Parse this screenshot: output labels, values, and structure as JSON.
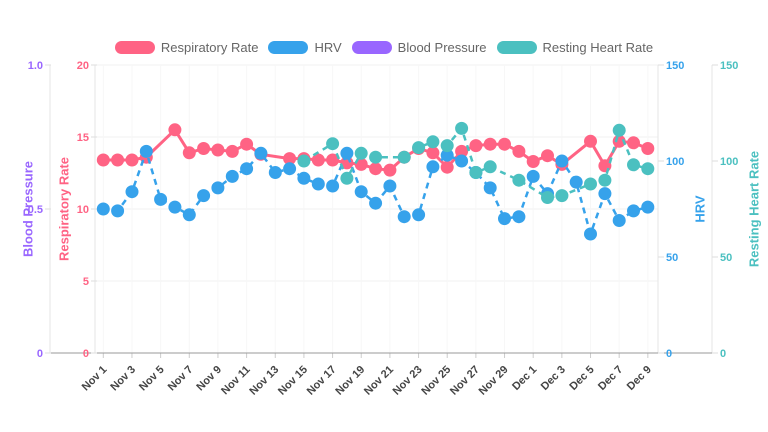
{
  "legend": [
    {
      "label": "Respiratory Rate",
      "color": "#ff6384",
      "style": "solid"
    },
    {
      "label": "HRV",
      "color": "#36a2eb",
      "style": "dashed"
    },
    {
      "label": "Blood Pressure",
      "color": "#9966ff",
      "style": "dashed"
    },
    {
      "label": "Resting Heart Rate",
      "color": "#4bc0c0",
      "style": "dashed"
    }
  ],
  "axes": {
    "blood_pressure": {
      "title": "Blood Pressure",
      "color": "#9966ff",
      "min": 0,
      "max": 1,
      "ticks": [
        "1.0",
        "0.5",
        "0"
      ]
    },
    "respiratory_rate": {
      "title": "Respiratory Rate",
      "color": "#ff6384",
      "min": 0,
      "max": 20,
      "ticks": [
        "20",
        "15",
        "10",
        "5",
        "0"
      ]
    },
    "hrv": {
      "title": "HRV",
      "color": "#36a2eb",
      "min": 0,
      "max": 150,
      "ticks": [
        "150",
        "100",
        "50",
        "0"
      ]
    },
    "resting_heart_rate": {
      "title": "Resting Heart Rate",
      "color": "#4bc0c0",
      "min": 0,
      "max": 150,
      "ticks": [
        "150",
        "100",
        "50",
        "0"
      ]
    }
  },
  "chart_data": {
    "type": "line",
    "legend_position": "top",
    "grid": "horizontal-light",
    "categories": [
      "Nov 1",
      "Nov 2",
      "Nov 3",
      "Nov 4",
      "Nov 5",
      "Nov 6",
      "Nov 7",
      "Nov 8",
      "Nov 9",
      "Nov 10",
      "Nov 11",
      "Nov 12",
      "Nov 13",
      "Nov 14",
      "Nov 15",
      "Nov 16",
      "Nov 17",
      "Nov 18",
      "Nov 19",
      "Nov 20",
      "Nov 21",
      "Nov 22",
      "Nov 23",
      "Nov 24",
      "Nov 25",
      "Nov 26",
      "Nov 27",
      "Nov 28",
      "Nov 29",
      "Nov 30",
      "Dec 1",
      "Dec 2",
      "Dec 3",
      "Dec 4",
      "Dec 5",
      "Dec 6",
      "Dec 7",
      "Dec 8",
      "Dec 9"
    ],
    "x_tick_labels": [
      "Nov 1",
      "Nov 3",
      "Nov 5",
      "Nov 7",
      "Nov 9",
      "Nov 11",
      "Nov 13",
      "Nov 15",
      "Nov 17",
      "Nov 19",
      "Nov 21",
      "Nov 23",
      "Nov 25",
      "Nov 27",
      "Nov 29",
      "Dec 1",
      "Dec 3",
      "Dec 5",
      "Dec 7",
      "Dec 9"
    ],
    "series": [
      {
        "name": "Respiratory Rate",
        "axis": "respiratory_rate",
        "color": "#ff6384",
        "line": "solid",
        "values": [
          13.4,
          13.4,
          13.4,
          13.6,
          null,
          15.5,
          13.9,
          14.2,
          14.1,
          14.0,
          14.5,
          13.8,
          null,
          13.5,
          13.5,
          13.4,
          13.4,
          13.2,
          13.1,
          12.8,
          12.7,
          13.6,
          14.2,
          13.9,
          12.9,
          14.0,
          14.4,
          14.5,
          14.5,
          14.0,
          13.3,
          13.7,
          13.1,
          null,
          14.7,
          13.0,
          14.7,
          14.6,
          14.2
        ]
      },
      {
        "name": "HRV",
        "axis": "hrv",
        "color": "#36a2eb",
        "line": "dashed",
        "values": [
          75,
          74,
          84,
          105,
          80,
          76,
          72,
          82,
          86,
          92,
          96,
          104,
          94,
          96,
          91,
          88,
          87,
          104,
          84,
          78,
          87,
          71,
          72,
          97,
          103,
          100,
          94,
          86,
          70,
          71,
          92,
          83,
          100,
          89,
          62,
          83,
          69,
          74,
          76
        ]
      },
      {
        "name": "Blood Pressure",
        "axis": "blood_pressure",
        "color": "#9966ff",
        "line": "dashed",
        "values": []
      },
      {
        "name": "Resting Heart Rate",
        "axis": "resting_heart_rate",
        "color": "#4bc0c0",
        "line": "dashed",
        "values": [
          null,
          null,
          null,
          null,
          null,
          null,
          null,
          null,
          null,
          null,
          null,
          null,
          null,
          null,
          100,
          null,
          109,
          91,
          104,
          102,
          null,
          102,
          107,
          110,
          108,
          117,
          94,
          97,
          null,
          90,
          null,
          81,
          82,
          null,
          88,
          90,
          116,
          98,
          96
        ]
      }
    ]
  }
}
